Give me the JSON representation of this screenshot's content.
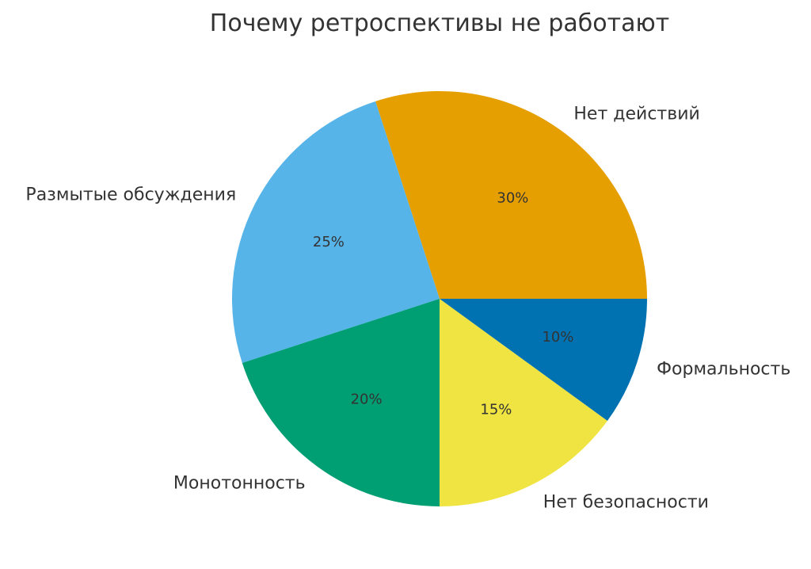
{
  "chart_data": {
    "type": "pie",
    "title": "Почему ретроспективы не работают",
    "start_angle_deg": 0,
    "direction": "counterclockwise",
    "slices": [
      {
        "label": "Нет действий",
        "value": 30,
        "pct_label": "30%",
        "color": "#E69F00"
      },
      {
        "label": "Размытые обсуждения",
        "value": 25,
        "pct_label": "25%",
        "color": "#56B4E9"
      },
      {
        "label": "Монотонность",
        "value": 20,
        "pct_label": "20%",
        "color": "#009E73"
      },
      {
        "label": "Нет безопасности",
        "value": 15,
        "pct_label": "15%",
        "color": "#F0E442"
      },
      {
        "label": "Формальность",
        "value": 10,
        "pct_label": "10%",
        "color": "#0072B2"
      }
    ]
  }
}
